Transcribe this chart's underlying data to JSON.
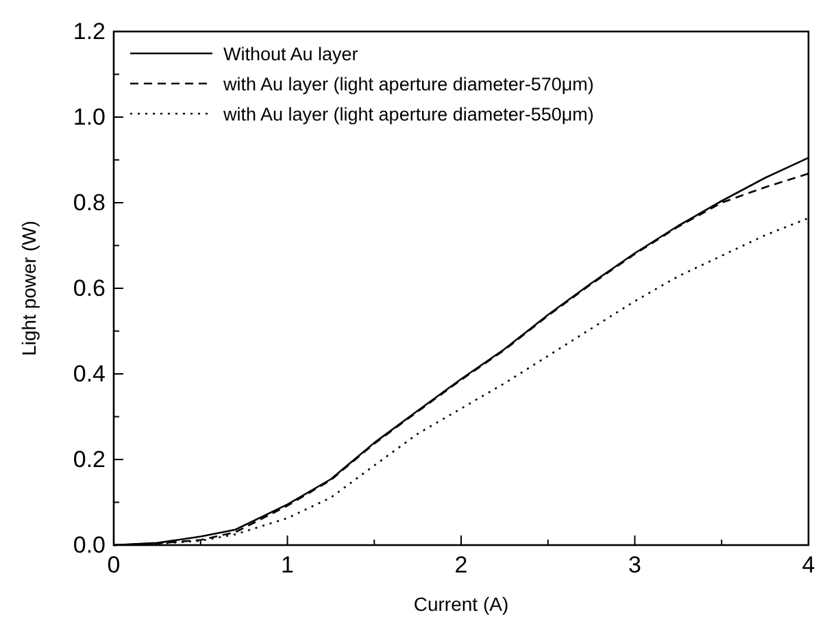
{
  "chart_data": {
    "type": "line",
    "xlabel": "Current (A)",
    "ylabel": "Light power (W)",
    "x": [
      0,
      0.25,
      0.5,
      0.7,
      1,
      1.25,
      1.5,
      1.75,
      2,
      2.25,
      2.5,
      2.75,
      3,
      3.25,
      3.5,
      3.75,
      4
    ],
    "series": [
      {
        "name": "Without Au layer",
        "color": "#000000",
        "line_style": "solid",
        "values": [
          0,
          0.005,
          0.02,
          0.036,
          0.095,
          0.154,
          0.239,
          0.314,
          0.388,
          0.458,
          0.538,
          0.612,
          0.682,
          0.746,
          0.804,
          0.858,
          0.905
        ]
      },
      {
        "name": "with Au layer (light aperture diameter-570μm)",
        "color": "#000000",
        "line_style": "dashed",
        "values": [
          0,
          0.004,
          0.012,
          0.03,
          0.092,
          0.152,
          0.237,
          0.312,
          0.386,
          0.456,
          0.536,
          0.61,
          0.68,
          0.744,
          0.8,
          0.836,
          0.868
        ]
      },
      {
        "name": "with Au layer (light aperture diameter-550μm)",
        "color": "#000000",
        "line_style": "dotted",
        "values": [
          0,
          0.003,
          0.01,
          0.025,
          0.063,
          0.111,
          0.186,
          0.26,
          0.319,
          0.378,
          0.442,
          0.506,
          0.57,
          0.628,
          0.676,
          0.724,
          0.764
        ]
      }
    ],
    "xlim": [
      0,
      4
    ],
    "ylim": [
      0,
      1.2
    ],
    "xticks": [
      0,
      {
        "value": 0.5,
        "label": null
      },
      1,
      {
        "value": 1.5,
        "label": null
      },
      2,
      {
        "value": 2.5,
        "label": null
      },
      3,
      {
        "value": 3.5,
        "label": null
      },
      4
    ],
    "yticks": [
      {
        "value": 0,
        "label": "0.0"
      },
      {
        "value": 0.1,
        "label": null
      },
      {
        "value": 0.2,
        "label": "0.2"
      },
      {
        "value": 0.3,
        "label": null
      },
      {
        "value": 0.4,
        "label": "0.4"
      },
      {
        "value": 0.5,
        "label": null
      },
      {
        "value": 0.6,
        "label": "0.6"
      },
      {
        "value": 0.7,
        "label": null
      },
      {
        "value": 0.8,
        "label": "0.8"
      },
      {
        "value": 0.9,
        "label": null
      },
      {
        "value": 1,
        "label": "1.0"
      },
      {
        "value": 1.1,
        "label": null
      },
      {
        "value": 1.2,
        "label": "1.2"
      }
    ],
    "grid": false,
    "legend": "top left",
    "marker": "none"
  }
}
